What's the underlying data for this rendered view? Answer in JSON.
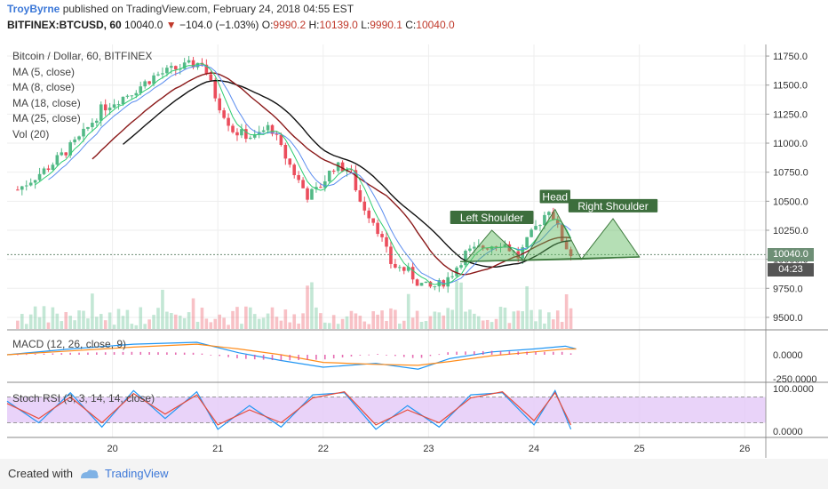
{
  "header": {
    "author": "TroyByrne",
    "published_text": "published on TradingView.com, February 24, 2018 04:55 EST",
    "symbol": "BITFINEX:BTCUSD, 60",
    "last": "10040.0",
    "change_arrow": "▼",
    "change": "−104.0 (−1.03%)",
    "o_label": "O:",
    "o_value": "9990.2",
    "h_label": "H:",
    "h_value": "10139.0",
    "l_label": "L:",
    "l_value": "9990.1",
    "c_label": "C:",
    "c_value": "10040.0"
  },
  "legend": {
    "title": "Bitcoin / Dollar, 60, BITFINEX",
    "items": [
      "MA (5, close)",
      "MA (8, close)",
      "MA (18, close)",
      "MA (25, close)",
      "Vol (20)"
    ]
  },
  "indicators": {
    "macd_label": "MACD (12, 26, close, 9)",
    "stoch_label": "Stoch RSI (3, 3, 14, 14, close)"
  },
  "price_tag": {
    "price": "10040.0",
    "countdown": "04:23"
  },
  "footer": {
    "created_with": "Created with",
    "brand": "TradingView"
  },
  "colors": {
    "up": "#53b987",
    "down": "#eb4d5c",
    "ma5": "#2ecc71",
    "ma8": "#5b8def",
    "ma18": "#8b1a1a",
    "ma25": "#111111",
    "pattern_fill": "#5cb85c",
    "macd_line": "#2196f3",
    "signal_line": "#ff8c1a",
    "rsi_k": "#2196f3",
    "rsi_d": "#e74c3c",
    "rsi_band": "#e3c8f7"
  },
  "chart_data": [
    {
      "type": "candlestick",
      "title": "Bitcoin / Dollar, 60, BITFINEX",
      "x_ticks": [
        "20",
        "21",
        "22",
        "23",
        "24",
        "25",
        "26"
      ],
      "y_ticks": [
        "11750.0",
        "11500.0",
        "11250.0",
        "11000.0",
        "10750.0",
        "10500.0",
        "10250.0",
        "10000.0",
        "9750.0",
        "9500.0"
      ],
      "ylim": [
        9400,
        11850
      ],
      "x_range_days": [
        19.0,
        26.2
      ],
      "last_price": 10040.0,
      "price_path": [
        [
          19.1,
          10600
        ],
        [
          19.4,
          10800
        ],
        [
          19.7,
          11050
        ],
        [
          19.9,
          11300
        ],
        [
          20.2,
          11450
        ],
        [
          20.4,
          11580
        ],
        [
          20.6,
          11640
        ],
        [
          20.85,
          11700
        ],
        [
          21.0,
          11350
        ],
        [
          21.15,
          11100
        ],
        [
          21.35,
          11050
        ],
        [
          21.5,
          11150
        ],
        [
          21.6,
          10950
        ],
        [
          21.75,
          10700
        ],
        [
          21.85,
          10550
        ],
        [
          21.95,
          10600
        ],
        [
          22.1,
          10800
        ],
        [
          22.25,
          10780
        ],
        [
          22.35,
          10500
        ],
        [
          22.5,
          10300
        ],
        [
          22.65,
          9950
        ],
        [
          22.8,
          9900
        ],
        [
          22.9,
          9800
        ],
        [
          23.0,
          9750
        ],
        [
          23.1,
          9780
        ],
        [
          23.2,
          9850
        ],
        [
          23.35,
          10050
        ],
        [
          23.5,
          10100
        ],
        [
          23.7,
          10150
        ],
        [
          23.85,
          10020
        ],
        [
          24.0,
          10250
        ],
        [
          24.15,
          10450
        ],
        [
          24.25,
          10200
        ],
        [
          24.35,
          10040
        ]
      ],
      "patterns": [
        {
          "label": "Left Shoulder",
          "x": [
            23.35,
            23.6,
            23.9
          ],
          "y": [
            9980,
            10250,
            9990
          ]
        },
        {
          "label": "Head",
          "x": [
            23.9,
            24.2,
            24.45
          ],
          "y": [
            9990,
            10430,
            10000
          ]
        },
        {
          "label": "Right Shoulder",
          "x": [
            24.45,
            24.75,
            25.0
          ],
          "y": [
            10000,
            10350,
            10020
          ]
        }
      ],
      "neckline": {
        "x": [
          23.3,
          25.0
        ],
        "y": [
          9980,
          10020
        ]
      }
    },
    {
      "type": "line",
      "title": "MACD (12, 26, close, 9)",
      "y_ticks": [
        "0.0000",
        "-250.0000"
      ],
      "series": [
        {
          "name": "MACD",
          "x": [
            19.0,
            19.6,
            20.2,
            20.8,
            21.2,
            21.6,
            22.0,
            22.5,
            22.9,
            23.2,
            23.6,
            24.0,
            24.3,
            24.4
          ],
          "values": [
            0,
            60,
            110,
            130,
            20,
            -60,
            -130,
            -90,
            -150,
            -40,
            30,
            60,
            90,
            60
          ]
        },
        {
          "name": "Signal",
          "x": [
            19.0,
            19.6,
            20.2,
            20.8,
            21.2,
            21.6,
            22.0,
            22.5,
            22.9,
            23.2,
            23.6,
            24.0,
            24.3,
            24.4
          ],
          "values": [
            0,
            40,
            80,
            110,
            60,
            0,
            -80,
            -100,
            -110,
            -70,
            -10,
            30,
            60,
            60
          ]
        }
      ]
    },
    {
      "type": "line",
      "title": "Stoch RSI (3, 3, 14, 14, close)",
      "y_ticks": [
        "100.0000",
        "0.0000"
      ],
      "ylim": [
        -10,
        110
      ],
      "band": [
        20,
        80
      ],
      "series": [
        {
          "name": "K",
          "x": [
            19.0,
            19.3,
            19.6,
            19.9,
            20.2,
            20.5,
            20.8,
            21.0,
            21.3,
            21.6,
            21.9,
            22.2,
            22.5,
            22.8,
            23.1,
            23.4,
            23.7,
            24.0,
            24.2,
            24.35
          ],
          "values": [
            70,
            20,
            90,
            10,
            95,
            30,
            92,
            5,
            60,
            10,
            85,
            90,
            5,
            60,
            10,
            85,
            90,
            15,
            95,
            5
          ]
        },
        {
          "name": "D",
          "x": [
            19.0,
            19.3,
            19.6,
            19.9,
            20.2,
            20.5,
            20.8,
            21.0,
            21.3,
            21.6,
            21.9,
            22.2,
            22.5,
            22.8,
            23.1,
            23.4,
            23.7,
            24.0,
            24.2,
            24.35
          ],
          "values": [
            65,
            30,
            80,
            20,
            88,
            40,
            85,
            15,
            50,
            20,
            78,
            92,
            15,
            50,
            20,
            78,
            92,
            25,
            90,
            15
          ]
        }
      ]
    }
  ]
}
